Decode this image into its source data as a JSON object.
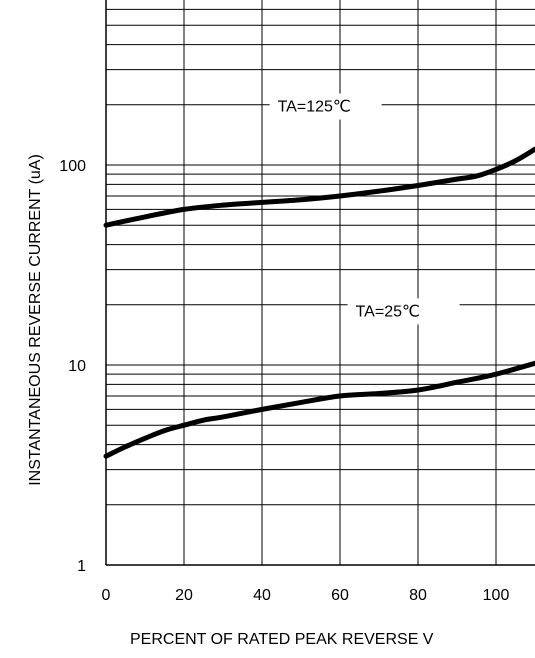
{
  "chart_data": {
    "type": "line",
    "title": "",
    "xlabel": "PERCENT OF RATED PEAK REVERSE V",
    "ylabel": "INSTANTANEOUS REVERSE CURRENT (uA)",
    "x_ticks": [
      "0",
      "20",
      "40",
      "60",
      "80",
      "100"
    ],
    "y_ticks": [
      "1",
      "10",
      "100"
    ],
    "xlim": [
      0,
      110
    ],
    "ylim": [
      1,
      1000
    ],
    "y_scale": "log",
    "grid": true,
    "legend": "none",
    "series": [
      {
        "annotation": "TA=125℃",
        "x": [
          0,
          10,
          20,
          30,
          40,
          50,
          60,
          70,
          80,
          90,
          95,
          100,
          105,
          110
        ],
        "y": [
          50,
          55,
          60,
          63,
          65,
          67,
          70,
          74,
          79,
          85,
          88,
          95,
          105,
          120
        ]
      },
      {
        "annotation": "TA=25℃",
        "x": [
          0,
          5,
          10,
          15,
          20,
          25,
          30,
          40,
          50,
          60,
          70,
          80,
          90,
          100,
          110
        ],
        "y": [
          3.5,
          3.9,
          4.3,
          4.7,
          5.0,
          5.3,
          5.5,
          6.0,
          6.5,
          7.0,
          7.2,
          7.5,
          8.2,
          9.0,
          10.2
        ]
      }
    ]
  }
}
